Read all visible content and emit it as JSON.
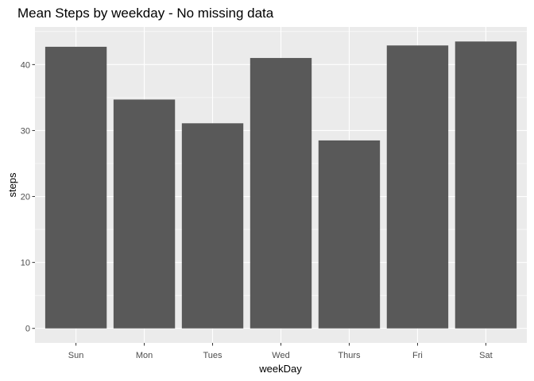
{
  "chart_data": {
    "type": "bar",
    "title": "Mean Steps by weekday - No missing data",
    "xlabel": "weekDay",
    "ylabel": "steps",
    "categories": [
      "Sun",
      "Mon",
      "Tues",
      "Wed",
      "Thurs",
      "Fri",
      "Sat"
    ],
    "values": [
      42.7,
      34.7,
      31.1,
      41.0,
      28.5,
      42.9,
      43.5
    ],
    "ylim": [
      -2.2,
      45.7
    ],
    "yticks": [
      0,
      10,
      20,
      30,
      40
    ],
    "grid": true,
    "legend": "none",
    "colors": {
      "bar": "#595959",
      "panel": "#ebebeb",
      "grid_major": "#ffffff",
      "tick_text": "#4d4d4d",
      "tick_mark": "#333333"
    }
  }
}
